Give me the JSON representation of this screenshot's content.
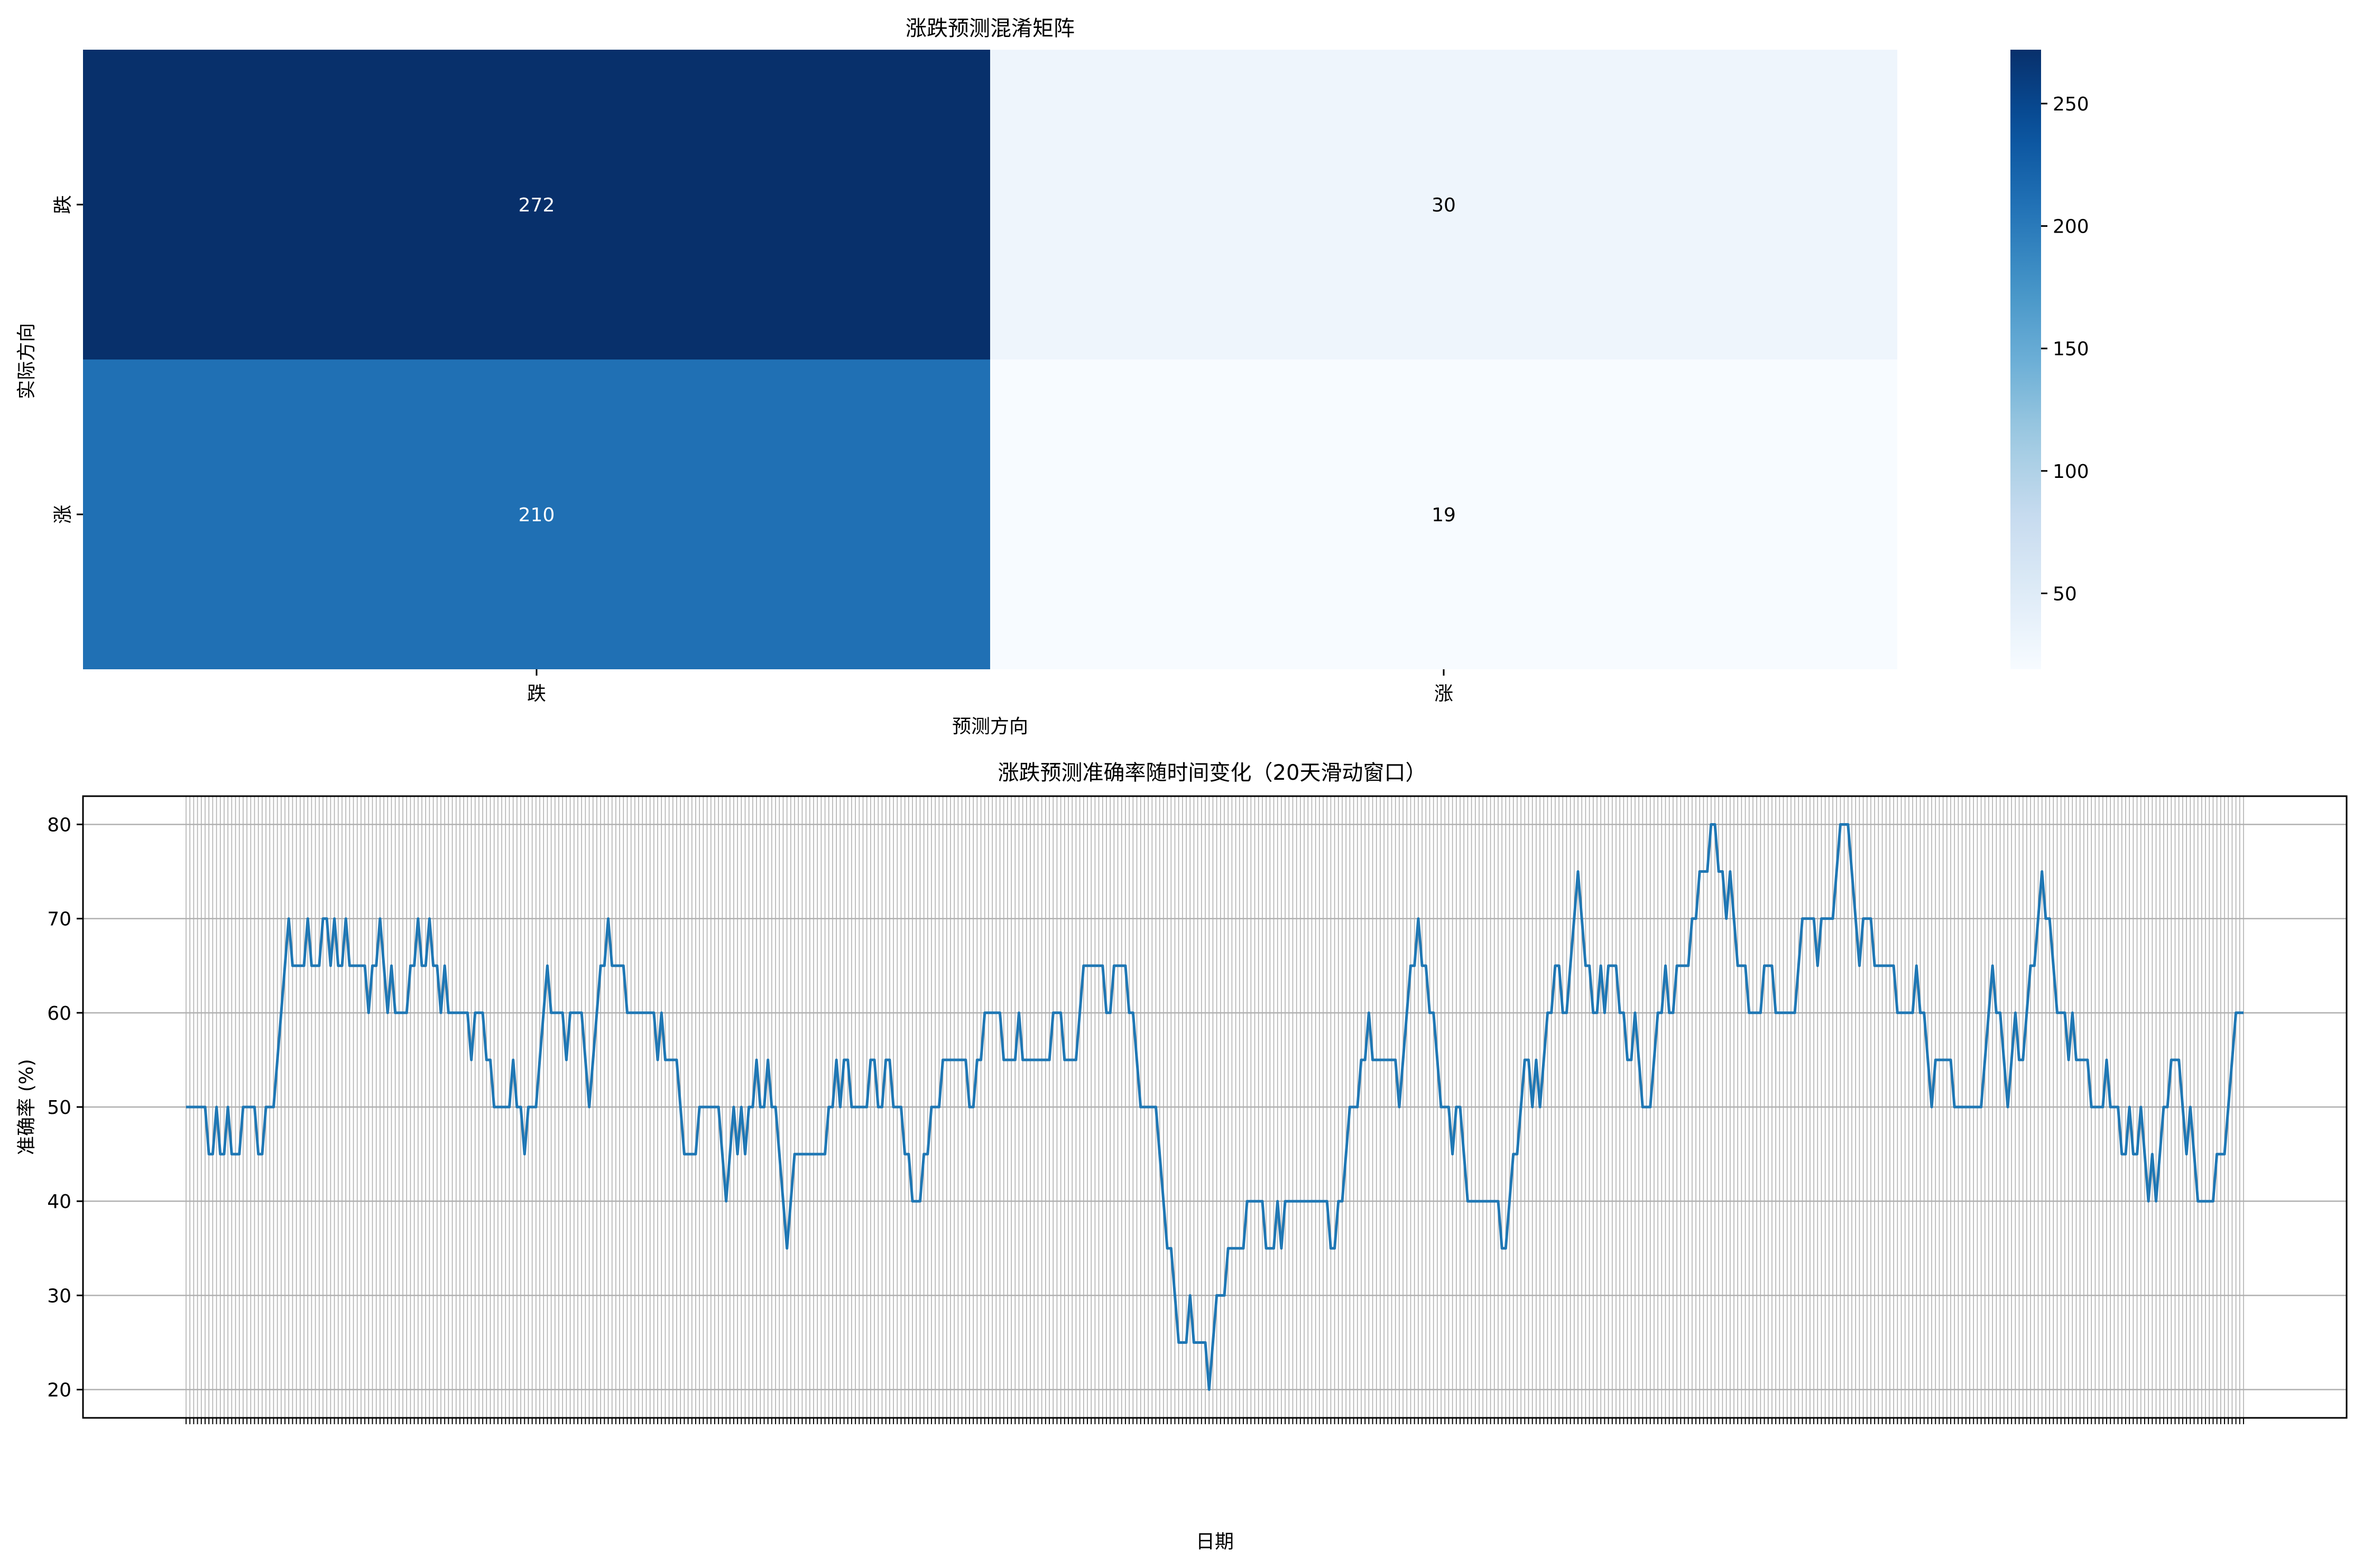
{
  "chart_data": [
    {
      "type": "heatmap",
      "title": "涨跌预测混淆矩阵",
      "xlabel": "预测方向",
      "ylabel": "实际方向",
      "x_categories": [
        "跌",
        "涨"
      ],
      "y_categories": [
        "跌",
        "涨"
      ],
      "values": [
        [
          272,
          30
        ],
        [
          210,
          19
        ]
      ],
      "colormap": "Blues",
      "colorbar": {
        "min": 19,
        "max": 272,
        "ticks": [
          50,
          100,
          150,
          200,
          250
        ]
      }
    },
    {
      "type": "line",
      "title": "涨跌预测准确率随时间变化（20天滑动窗口）",
      "xlabel": "日期",
      "ylabel": "准确率 (%)",
      "ylim": [
        17,
        83
      ],
      "yticks": [
        20,
        30,
        40,
        50,
        60,
        70,
        80
      ],
      "grid": true,
      "color": "#1f77b4",
      "series": [
        {
          "values": [
            50,
            50,
            50,
            50,
            50,
            50,
            45,
            45,
            50,
            45,
            45,
            50,
            45,
            45,
            45,
            50,
            50,
            50,
            50,
            45,
            45,
            50,
            50,
            50,
            55,
            60,
            65,
            70,
            65,
            65,
            65,
            65,
            70,
            65,
            65,
            65,
            70,
            70,
            65,
            70,
            65,
            65,
            70,
            65,
            65,
            65,
            65,
            65,
            60,
            65,
            65,
            70,
            65,
            60,
            65,
            60,
            60,
            60,
            60,
            65,
            65,
            70,
            65,
            65,
            70,
            65,
            65,
            60,
            65,
            60,
            60,
            60,
            60,
            60,
            60,
            55,
            60,
            60,
            60,
            55,
            55,
            50,
            50,
            50,
            50,
            50,
            55,
            50,
            50,
            45,
            50,
            50,
            50,
            55,
            60,
            65,
            60,
            60,
            60,
            60,
            55,
            60,
            60,
            60,
            60,
            55,
            50,
            55,
            60,
            65,
            65,
            70,
            65,
            65,
            65,
            65,
            60,
            60,
            60,
            60,
            60,
            60,
            60,
            60,
            55,
            60,
            55,
            55,
            55,
            55,
            50,
            45,
            45,
            45,
            45,
            50,
            50,
            50,
            50,
            50,
            50,
            45,
            40,
            45,
            50,
            45,
            50,
            45,
            50,
            50,
            55,
            50,
            50,
            55,
            50,
            50,
            45,
            40,
            35,
            40,
            45,
            45,
            45,
            45,
            45,
            45,
            45,
            45,
            45,
            50,
            50,
            55,
            50,
            55,
            55,
            50,
            50,
            50,
            50,
            50,
            55,
            55,
            50,
            50,
            55,
            55,
            50,
            50,
            50,
            45,
            45,
            40,
            40,
            40,
            45,
            45,
            50,
            50,
            50,
            55,
            55,
            55,
            55,
            55,
            55,
            55,
            50,
            50,
            55,
            55,
            60,
            60,
            60,
            60,
            60,
            55,
            55,
            55,
            55,
            60,
            55,
            55,
            55,
            55,
            55,
            55,
            55,
            55,
            60,
            60,
            60,
            55,
            55,
            55,
            55,
            60,
            65,
            65,
            65,
            65,
            65,
            65,
            60,
            60,
            65,
            65,
            65,
            65,
            60,
            60,
            55,
            50,
            50,
            50,
            50,
            50,
            45,
            40,
            35,
            35,
            30,
            25,
            25,
            25,
            30,
            25,
            25,
            25,
            25,
            20,
            25,
            30,
            30,
            30,
            35,
            35,
            35,
            35,
            35,
            40,
            40,
            40,
            40,
            40,
            35,
            35,
            35,
            40,
            35,
            40,
            40,
            40,
            40,
            40,
            40,
            40,
            40,
            40,
            40,
            40,
            40,
            35,
            35,
            40,
            40,
            45,
            50,
            50,
            50,
            55,
            55,
            60,
            55,
            55,
            55,
            55,
            55,
            55,
            55,
            50,
            55,
            60,
            65,
            65,
            70,
            65,
            65,
            60,
            60,
            55,
            50,
            50,
            50,
            45,
            50,
            50,
            45,
            40,
            40,
            40,
            40,
            40,
            40,
            40,
            40,
            40,
            35,
            35,
            40,
            45,
            45,
            50,
            55,
            55,
            50,
            55,
            50,
            55,
            60,
            60,
            65,
            65,
            60,
            60,
            65,
            70,
            75,
            70,
            65,
            65,
            60,
            60,
            65,
            60,
            65,
            65,
            65,
            60,
            60,
            55,
            55,
            60,
            55,
            50,
            50,
            50,
            55,
            60,
            60,
            65,
            60,
            60,
            65,
            65,
            65,
            65,
            70,
            70,
            75,
            75,
            75,
            80,
            80,
            75,
            75,
            70,
            75,
            70,
            65,
            65,
            65,
            60,
            60,
            60,
            60,
            65,
            65,
            65,
            60,
            60,
            60,
            60,
            60,
            60,
            65,
            70,
            70,
            70,
            70,
            65,
            70,
            70,
            70,
            70,
            75,
            80,
            80,
            80,
            75,
            70,
            65,
            70,
            70,
            70,
            65,
            65,
            65,
            65,
            65,
            65,
            60,
            60,
            60,
            60,
            60,
            65,
            60,
            60,
            55,
            50,
            55,
            55,
            55,
            55,
            55,
            50,
            50,
            50,
            50,
            50,
            50,
            50,
            50,
            55,
            60,
            65,
            60,
            60,
            55,
            50,
            55,
            60,
            55,
            55,
            60,
            65,
            65,
            70,
            75,
            70,
            70,
            65,
            60,
            60,
            60,
            55,
            60,
            55,
            55,
            55,
            55,
            50,
            50,
            50,
            50,
            55,
            50,
            50,
            50,
            45,
            45,
            50,
            45,
            45,
            50,
            45,
            40,
            45,
            40,
            45,
            50,
            50,
            55,
            55,
            55,
            50,
            45,
            50,
            45,
            40,
            40,
            40,
            40,
            40,
            45,
            45,
            45,
            50,
            55,
            60,
            60,
            60
          ]
        }
      ]
    }
  ]
}
